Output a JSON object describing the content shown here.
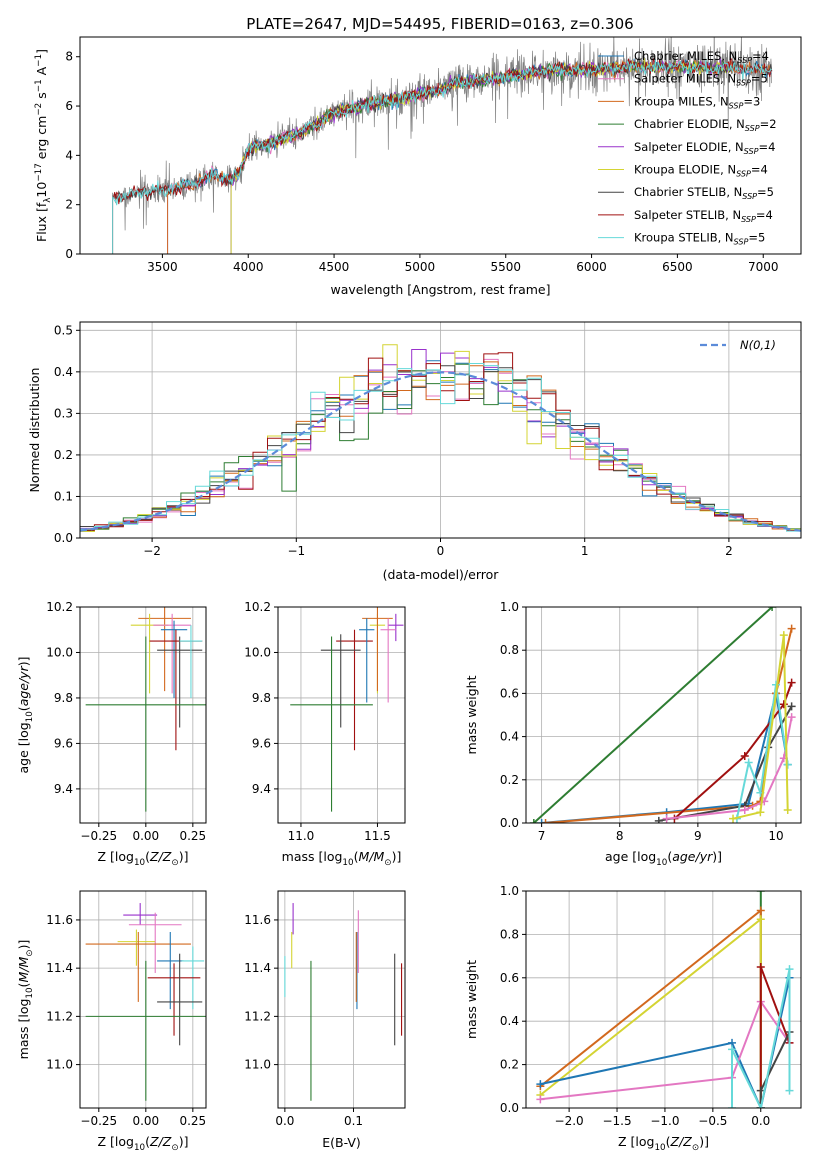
{
  "figure": {
    "title": "PLATE=2647, MJD=54495, FIBERID=0163, z=0.306"
  },
  "model_colors": {
    "Chabrier MILES": "#1f77b4",
    "Salpeter MILES": "#e377c2",
    "Kroupa MILES": "#d2691e",
    "Chabrier ELODIE": "#2e7d32",
    "Salpeter ELODIE": "#9932cc",
    "Kroupa ELODIE": "#d4d433",
    "Chabrier STELIB": "#444444",
    "Salpeter STELIB": "#a01010",
    "Kroupa STELIB": "#66d9d9",
    "data_gray": "#808080",
    "gaussian": "#5b8bd9"
  },
  "chart_data": [
    {
      "type": "line",
      "name": "spectrum",
      "xlabel": "wavelength [Angstrom, rest frame]",
      "ylabel": "Flux [f_λ 10^-17 erg cm^-2 s^-1 A^-1]",
      "xlim": [
        3020,
        7220
      ],
      "ylim": [
        0,
        8.8
      ],
      "xticks": [
        3500,
        4000,
        4500,
        5000,
        5500,
        6000,
        6500,
        7000
      ],
      "yticks": [
        0,
        2,
        4,
        6,
        8
      ],
      "legend": {
        "position": "top-right",
        "entries": [
          {
            "label": "Chabrier MILES, N",
            "sub": "SSP",
            "tail": "=4"
          },
          {
            "label": "Salpeter MILES, N",
            "sub": "SSP",
            "tail": "=5"
          },
          {
            "label": "Kroupa MILES, N",
            "sub": "SSP",
            "tail": "=3"
          },
          {
            "label": "Chabrier ELODIE, N",
            "sub": "SSP",
            "tail": "=2"
          },
          {
            "label": "Salpeter ELODIE, N",
            "sub": "SSP",
            "tail": "=4"
          },
          {
            "label": "Kroupa ELODIE, N",
            "sub": "SSP",
            "tail": "=4"
          },
          {
            "label": "Chabrier STELIB, N",
            "sub": "SSP",
            "tail": "=5"
          },
          {
            "label": "Salpeter STELIB, N",
            "sub": "SSP",
            "tail": "=4"
          },
          {
            "label": "Kroupa STELIB, N",
            "sub": "SSP",
            "tail": "=5"
          }
        ]
      },
      "continuum": {
        "wavelength": [
          3210,
          3300,
          3400,
          3500,
          3600,
          3700,
          3800,
          3900,
          3950,
          4000,
          4100,
          4200,
          4300,
          4400,
          4500,
          4600,
          4700,
          4800,
          4900,
          5000,
          5100,
          5200,
          5300,
          5400,
          5500,
          5600,
          5700,
          5800,
          5900,
          6000,
          6100,
          6200,
          6300,
          6400,
          6500,
          6600,
          6700,
          6800,
          6900,
          7000,
          7100
        ],
        "flux": [
          2.3,
          2.4,
          2.5,
          2.6,
          2.7,
          2.9,
          3.2,
          3.0,
          3.3,
          4.3,
          4.4,
          4.7,
          4.9,
          5.3,
          5.7,
          5.9,
          6.1,
          6.2,
          6.3,
          6.5,
          6.6,
          6.9,
          7.0,
          7.1,
          7.2,
          7.3,
          7.4,
          7.5,
          7.4,
          7.5,
          7.5,
          7.6,
          7.6,
          7.6,
          7.6,
          7.6,
          7.5,
          7.6,
          7.5,
          7.5,
          7.4
        ]
      }
    },
    {
      "type": "bar",
      "name": "residual-histogram",
      "xlabel": "(data-model)/error",
      "ylabel": "Normed distribution",
      "xlim": [
        -2.5,
        2.5
      ],
      "ylim": [
        0,
        0.52
      ],
      "xticks": [
        -2,
        -1,
        0,
        1,
        2
      ],
      "yticks": [
        0.0,
        0.1,
        0.2,
        0.3,
        0.4,
        0.5
      ],
      "bin_width": 0.1,
      "gaussian_label": "N(0,1)",
      "gaussian_mean": 0,
      "gaussian_sigma": 1
    },
    {
      "type": "scatter",
      "name": "age-vs-Z",
      "xlabel": "Z [log10(Z/Z⊙)]",
      "ylabel": "age [log10(age/yr)]",
      "xlim": [
        -0.35,
        0.32
      ],
      "ylim": [
        9.25,
        10.2
      ],
      "xticks": [
        -0.25,
        0.0,
        0.25
      ],
      "yticks": [
        9.4,
        9.6,
        9.8,
        10.0,
        10.2
      ],
      "points": [
        {
          "model": "Kroupa MILES",
          "x": 0.1,
          "xerr": 0.14,
          "y": 10.15,
          "yerr_lo": 0.32,
          "yerr_hi": 0.05
        },
        {
          "model": "Kroupa ELODIE",
          "x": 0.02,
          "xerr": 0.1,
          "y": 10.12,
          "yerr_lo": 0.3,
          "yerr_hi": 0.05
        },
        {
          "model": "Salpeter MILES",
          "x": 0.14,
          "xerr": 0.1,
          "y": 10.12,
          "yerr_lo": 0.3,
          "yerr_hi": 0.05
        },
        {
          "model": "Chabrier MILES",
          "x": 0.15,
          "xerr": 0.07,
          "y": 10.1,
          "yerr_lo": 0.3,
          "yerr_hi": 0.04
        },
        {
          "model": "Salpeter STELIB",
          "x": 0.16,
          "xerr": 0.14,
          "y": 10.05,
          "yerr_lo": 0.48,
          "yerr_hi": 0.05
        },
        {
          "model": "Chabrier STELIB",
          "x": 0.18,
          "xerr": 0.12,
          "y": 10.01,
          "yerr_lo": 0.34,
          "yerr_hi": 0.06
        },
        {
          "model": "Kroupa STELIB",
          "x": 0.24,
          "xerr": 0.06,
          "y": 10.05,
          "yerr_lo": 0.25,
          "yerr_hi": 0.07
        },
        {
          "model": "Chabrier ELODIE",
          "x": 0.0,
          "xerr": 0.32,
          "y": 9.77,
          "yerr_lo": 0.47,
          "yerr_hi": 0.3
        }
      ]
    },
    {
      "type": "scatter",
      "name": "age-vs-mass",
      "xlabel": "mass [log10(M/M⊙)]",
      "ylabel": "",
      "xlim": [
        10.85,
        11.68
      ],
      "ylim": [
        9.25,
        10.2
      ],
      "xticks": [
        11.0,
        11.5
      ],
      "yticks": [
        9.4,
        9.6,
        9.8,
        10.0,
        10.2
      ],
      "points": [
        {
          "model": "Salpeter ELODIE",
          "x": 11.62,
          "xerr": 0.05,
          "y": 10.12,
          "yerr_lo": 0.07,
          "yerr_hi": 0.05
        },
        {
          "model": "Kroupa ELODIE",
          "x": 11.5,
          "xerr": 0.05,
          "y": 10.12,
          "yerr_lo": 0.3,
          "yerr_hi": 0.05
        },
        {
          "model": "Kroupa MILES",
          "x": 11.5,
          "xerr": 0.1,
          "y": 10.15,
          "yerr_lo": 0.32,
          "yerr_hi": 0.05
        },
        {
          "model": "Salpeter MILES",
          "x": 11.57,
          "xerr": 0.05,
          "y": 10.1,
          "yerr_lo": 0.32,
          "yerr_hi": 0.05
        },
        {
          "model": "Salpeter STELIB",
          "x": 11.35,
          "xerr": 0.12,
          "y": 10.05,
          "yerr_lo": 0.48,
          "yerr_hi": 0.05
        },
        {
          "model": "Chabrier STELIB",
          "x": 11.26,
          "xerr": 0.13,
          "y": 10.01,
          "yerr_lo": 0.34,
          "yerr_hi": 0.07
        },
        {
          "model": "Chabrier MILES",
          "x": 11.43,
          "xerr": 0.05,
          "y": 10.1,
          "yerr_lo": 0.32,
          "yerr_hi": 0.05
        },
        {
          "model": "Chabrier ELODIE",
          "x": 11.2,
          "xerr": 0.27,
          "y": 9.77,
          "yerr_lo": 0.47,
          "yerr_hi": 0.3
        }
      ]
    },
    {
      "type": "line",
      "name": "mass-weight-vs-age",
      "xlabel": "age [log10(age/yr)]",
      "ylabel": "mass weight",
      "xlim": [
        6.8,
        10.32
      ],
      "ylim": [
        0,
        1.0
      ],
      "xticks": [
        7,
        8,
        9,
        10
      ],
      "yticks": [
        0.0,
        0.2,
        0.4,
        0.6,
        0.8,
        1.0
      ],
      "series": [
        {
          "model": "Chabrier ELODIE",
          "x": [
            6.9,
            9.95
          ],
          "y": [
            0.0,
            1.0
          ]
        },
        {
          "model": "Chabrier MILES",
          "x": [
            7.0,
            8.6,
            9.65,
            10.0,
            10.15
          ],
          "y": [
            0.0,
            0.05,
            0.09,
            0.6,
            0.27
          ]
        },
        {
          "model": "Kroupa MILES",
          "x": [
            7.05,
            9.7,
            9.8,
            10.0,
            10.2
          ],
          "y": [
            0.0,
            0.08,
            0.1,
            0.6,
            0.9
          ]
        },
        {
          "model": "Salpeter STELIB",
          "x": [
            8.7,
            9.6,
            10.1,
            10.2
          ],
          "y": [
            0.02,
            0.31,
            0.55,
            0.65
          ]
        },
        {
          "model": "Chabrier STELIB",
          "x": [
            8.5,
            9.6,
            9.9,
            10.2
          ],
          "y": [
            0.01,
            0.08,
            0.35,
            0.54
          ]
        },
        {
          "model": "Salpeter MILES",
          "x": [
            8.6,
            9.6,
            9.85,
            10.1,
            10.2
          ],
          "y": [
            0.02,
            0.06,
            0.1,
            0.3,
            0.49
          ]
        },
        {
          "model": "Kroupa STELIB",
          "x": [
            9.5,
            9.65,
            9.8,
            10.0,
            10.15
          ],
          "y": [
            0.02,
            0.28,
            0.14,
            0.64,
            0.27
          ]
        },
        {
          "model": "Kroupa ELODIE",
          "x": [
            9.45,
            9.8,
            10.1,
            10.15
          ],
          "y": [
            0.02,
            0.05,
            0.87,
            0.06
          ]
        }
      ]
    },
    {
      "type": "scatter",
      "name": "mass-vs-Z",
      "xlabel": "Z [log10(Z/Z⊙)]",
      "ylabel": "mass [log10(M/M⊙)]",
      "xlim": [
        -0.35,
        0.32
      ],
      "ylim": [
        10.82,
        11.72
      ],
      "xticks": [
        -0.25,
        0.0,
        0.25
      ],
      "yticks": [
        11.0,
        11.2,
        11.4,
        11.6
      ],
      "points": [
        {
          "model": "Salpeter ELODIE",
          "x": -0.03,
          "xerr": 0.09,
          "y": 11.62,
          "yerr_lo": 0.04,
          "yerr_hi": 0.05
        },
        {
          "model": "Salpeter MILES",
          "x": 0.05,
          "xerr": 0.14,
          "y": 11.58,
          "yerr_lo": 0.2,
          "yerr_hi": 0.05
        },
        {
          "model": "Kroupa ELODIE",
          "x": -0.05,
          "xerr": 0.1,
          "y": 11.51,
          "yerr_lo": 0.1,
          "yerr_hi": 0.05
        },
        {
          "model": "Kroupa MILES",
          "x": -0.04,
          "xerr": 0.28,
          "y": 11.5,
          "yerr_lo": 0.24,
          "yerr_hi": 0.05
        },
        {
          "model": "Chabrier MILES",
          "x": 0.13,
          "xerr": 0.07,
          "y": 11.43,
          "yerr_lo": 0.2,
          "yerr_hi": 0.12
        },
        {
          "model": "Kroupa STELIB",
          "x": 0.25,
          "xerr": 0.06,
          "y": 11.43,
          "yerr_lo": 0.2,
          "yerr_hi": 0.06
        },
        {
          "model": "Salpeter STELIB",
          "x": 0.15,
          "xerr": 0.14,
          "y": 11.36,
          "yerr_lo": 0.24,
          "yerr_hi": 0.06
        },
        {
          "model": "Chabrier STELIB",
          "x": 0.18,
          "xerr": 0.12,
          "y": 11.26,
          "yerr_lo": 0.18,
          "yerr_hi": 0.2
        },
        {
          "model": "Chabrier ELODIE",
          "x": 0.0,
          "xerr": 0.32,
          "y": 11.2,
          "yerr_lo": 0.35,
          "yerr_hi": 0.23
        }
      ]
    },
    {
      "type": "scatter",
      "name": "mass-vs-EBV",
      "xlabel": "E(B-V)",
      "ylabel": "",
      "xlim": [
        -0.01,
        0.175
      ],
      "ylim": [
        10.82,
        11.72
      ],
      "xticks": [
        0.0,
        0.1
      ],
      "yticks": [
        11.0,
        11.2,
        11.4,
        11.6
      ],
      "points": [
        {
          "model": "Salpeter ELODIE",
          "x": 0.012,
          "y": 11.62,
          "yerr_lo": 0.08,
          "yerr_hi": 0.05
        },
        {
          "model": "Kroupa ELODIE",
          "x": 0.01,
          "y": 11.5,
          "yerr_lo": 0.1,
          "yerr_hi": 0.05
        },
        {
          "model": "Kroupa STELIB",
          "x": 0.0,
          "y": 11.38,
          "yerr_lo": 0.1,
          "yerr_hi": 0.07
        },
        {
          "model": "Salpeter MILES",
          "x": 0.107,
          "y": 11.58,
          "yerr_lo": 0.2,
          "yerr_hi": 0.06
        },
        {
          "model": "Chabrier MILES",
          "x": 0.105,
          "y": 11.43,
          "yerr_lo": 0.2,
          "yerr_hi": 0.12
        },
        {
          "model": "Kroupa MILES",
          "x": 0.104,
          "y": 11.5,
          "yerr_lo": 0.24,
          "yerr_hi": 0.05
        },
        {
          "model": "Chabrier ELODIE",
          "x": 0.038,
          "y": 11.2,
          "yerr_lo": 0.35,
          "yerr_hi": 0.23
        },
        {
          "model": "Chabrier STELIB",
          "x": 0.16,
          "y": 11.26,
          "yerr_lo": 0.18,
          "yerr_hi": 0.2
        },
        {
          "model": "Salpeter STELIB",
          "x": 0.17,
          "y": 11.36,
          "yerr_lo": 0.24,
          "yerr_hi": 0.06
        }
      ]
    },
    {
      "type": "line",
      "name": "mass-weight-vs-Z",
      "xlabel": "Z [log10(Z/Z⊙)]",
      "ylabel": "mass weight",
      "xlim": [
        -2.45,
        0.42
      ],
      "ylim": [
        0,
        1.0
      ],
      "xticks": [
        -2.0,
        -1.5,
        -1.0,
        -0.5,
        0.0
      ],
      "yticks": [
        0.0,
        0.2,
        0.4,
        0.6,
        0.8,
        1.0
      ],
      "series": [
        {
          "model": "Chabrier ELODIE",
          "x": [
            0.0,
            0.0
          ],
          "y": [
            0.0,
            1.0
          ]
        },
        {
          "model": "Kroupa MILES",
          "x": [
            -2.3,
            0.0,
            0.0
          ],
          "y": [
            0.1,
            0.91,
            0.0
          ]
        },
        {
          "model": "Kroupa ELODIE",
          "x": [
            -2.3,
            0.0,
            0.0
          ],
          "y": [
            0.06,
            0.87,
            0.0
          ]
        },
        {
          "model": "Chabrier MILES",
          "x": [
            -2.3,
            -0.3,
            0.0,
            0.3
          ],
          "y": [
            0.11,
            0.3,
            0.0,
            0.6
          ]
        },
        {
          "model": "Salpeter MILES",
          "x": [
            -2.3,
            -0.3,
            0.0,
            0.3
          ],
          "y": [
            0.04,
            0.14,
            0.49,
            0.3
          ]
        },
        {
          "model": "Salpeter STELIB",
          "x": [
            0.0,
            0.0,
            0.3
          ],
          "y": [
            0.0,
            0.65,
            0.3
          ]
        },
        {
          "model": "Chabrier STELIB",
          "x": [
            0.0,
            0.0,
            0.3
          ],
          "y": [
            0.0,
            0.08,
            0.35
          ]
        },
        {
          "model": "Kroupa STELIB",
          "x": [
            -0.3,
            -0.3,
            0.0,
            0.3,
            0.3
          ],
          "y": [
            0.0,
            0.27,
            0.0,
            0.64,
            0.08
          ]
        }
      ]
    }
  ]
}
